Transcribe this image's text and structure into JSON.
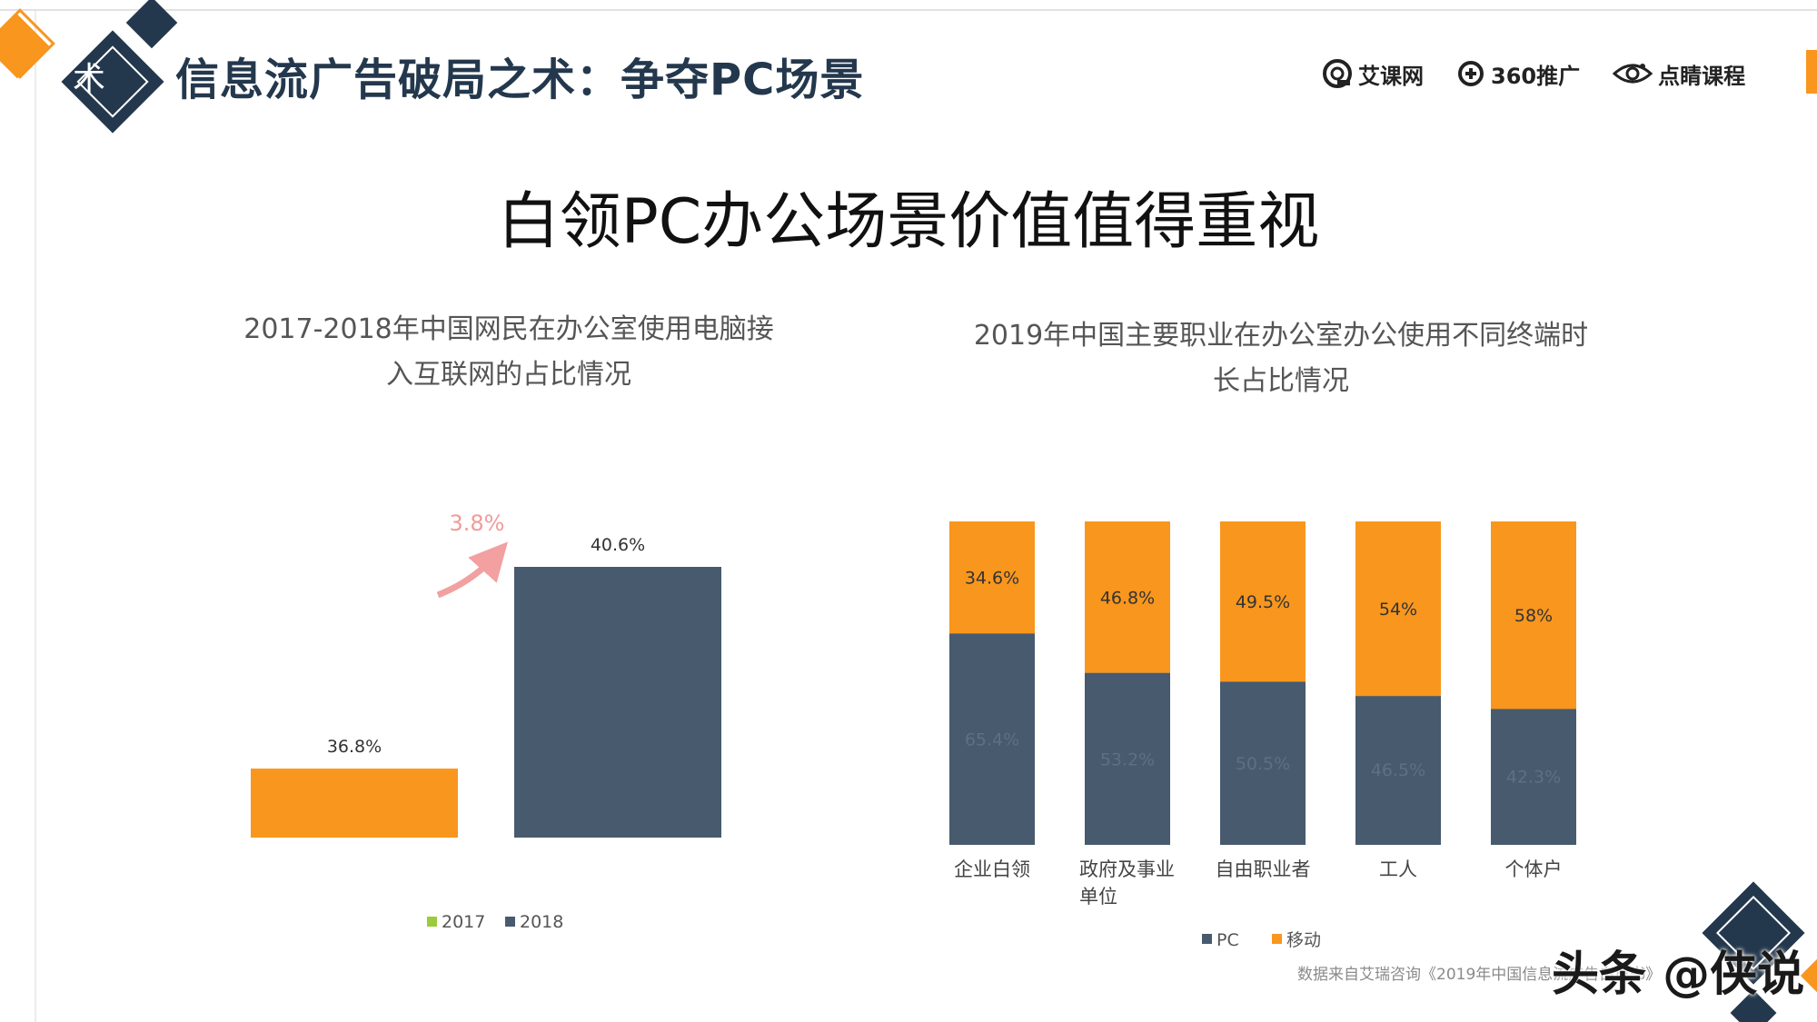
{
  "header": {
    "deco_char": "术",
    "title": "信息流广告破局之术：争夺PC场景",
    "logos": [
      {
        "name": "艾课网",
        "icon": "aikewang-logo"
      },
      {
        "name": "360推广",
        "icon": "360-logo"
      },
      {
        "name": "点睛课程",
        "icon": "dianjing-logo"
      }
    ]
  },
  "main_title": "白领PC办公场景价值值得重视",
  "colors": {
    "orange": "#F8961E",
    "slate": "#475A6E",
    "navy": "#24384d",
    "arrow": "#F2A0A0",
    "legend_green": "#9BCB3B"
  },
  "chart_data": [
    {
      "type": "bar",
      "title_lines": [
        "2017-2018年中国网民在办公室使用电脑接",
        "入互联网的占比情况"
      ],
      "categories": [
        "2017",
        "2018"
      ],
      "values": [
        36.8,
        40.6
      ],
      "value_labels": [
        "36.8%",
        "40.6%"
      ],
      "annotation": "3.8%",
      "legend": [
        "2017",
        "2018"
      ],
      "legend_colors": [
        "#9BCB3B",
        "#475A6E"
      ],
      "bar_colors": [
        "#F8961E",
        "#475A6E"
      ],
      "ylim": [
        0,
        45
      ]
    },
    {
      "type": "bar",
      "stacked": true,
      "title_lines": [
        "2019年中国主要职业在办公室办公使用不同终端时",
        "长占比情况"
      ],
      "categories": [
        "企业白领",
        "政府及事业单位",
        "自由职业者",
        "工人",
        "个体户"
      ],
      "category_lines": [
        [
          "企业白领"
        ],
        [
          "政府及事业",
          "单位"
        ],
        [
          "自由职业者"
        ],
        [
          "工人"
        ],
        [
          "个体户"
        ]
      ],
      "series": [
        {
          "name": "PC",
          "values": [
            65.4,
            53.2,
            50.5,
            46.5,
            42.3
          ],
          "labels": [
            "65.4%",
            "53.2%",
            "50.5%",
            "46.5%",
            "42.3%"
          ],
          "color": "#475A6E"
        },
        {
          "name": "移动",
          "values": [
            34.6,
            46.8,
            49.5,
            54,
            58
          ],
          "labels": [
            "34.6%",
            "46.8%",
            "49.5%",
            "54%",
            "58%"
          ],
          "color": "#F8961E"
        }
      ],
      "ylim": [
        0,
        100
      ]
    }
  ],
  "footer": {
    "source": "数据来自艾瑞咨询《2019年中国信息流广告白皮书》",
    "watermark": "头条 @侠说"
  }
}
